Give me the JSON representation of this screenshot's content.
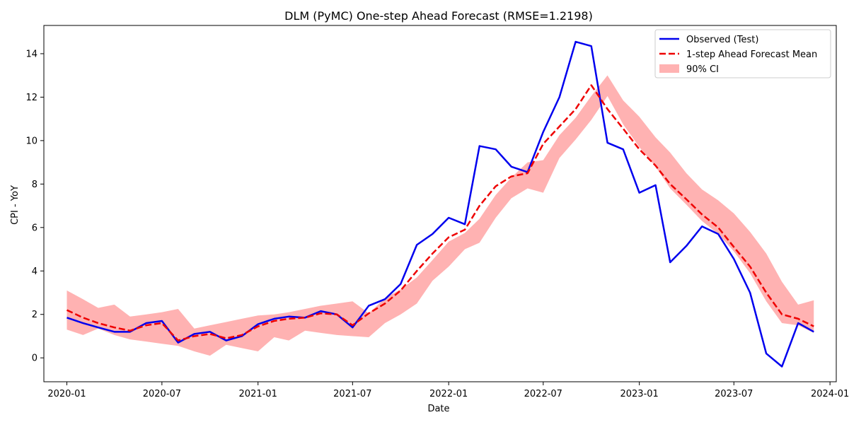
{
  "chart_data": {
    "type": "line",
    "title": "DLM (PyMC) One-step Ahead Forecast (RMSE=1.2198)",
    "xlabel": "Date",
    "ylabel": "CPI - YoY",
    "xlim": [
      "2019-11-18",
      "2024-01-13"
    ],
    "ylim": [
      -1.1,
      15.3
    ],
    "y_ticks": [
      0,
      2,
      4,
      6,
      8,
      10,
      12,
      14
    ],
    "x_ticks": [
      "2020-01",
      "2020-07",
      "2021-01",
      "2021-07",
      "2022-01",
      "2022-07",
      "2023-01",
      "2023-07",
      "2024-01"
    ],
    "grid": false,
    "legend_position": "upper right",
    "x": [
      "2020-01-01",
      "2020-02-01",
      "2020-03-01",
      "2020-04-01",
      "2020-05-01",
      "2020-06-01",
      "2020-07-01",
      "2020-08-01",
      "2020-09-01",
      "2020-10-01",
      "2020-11-01",
      "2020-12-01",
      "2021-01-01",
      "2021-02-01",
      "2021-03-01",
      "2021-04-01",
      "2021-05-01",
      "2021-06-01",
      "2021-07-01",
      "2021-08-01",
      "2021-09-01",
      "2021-10-01",
      "2021-11-01",
      "2021-12-01",
      "2022-01-01",
      "2022-02-01",
      "2022-03-01",
      "2022-04-01",
      "2022-05-01",
      "2022-06-01",
      "2022-07-01",
      "2022-08-01",
      "2022-09-01",
      "2022-10-01",
      "2022-11-01",
      "2022-12-01",
      "2023-01-01",
      "2023-02-01",
      "2023-03-01",
      "2023-04-01",
      "2023-05-01",
      "2023-06-01",
      "2023-07-01",
      "2023-08-01",
      "2023-09-01",
      "2023-10-01",
      "2023-11-01",
      "2023-12-01"
    ],
    "series": [
      {
        "name": "Observed (Test)",
        "color": "#0000ee",
        "style": "solid",
        "values": [
          1.85,
          1.6,
          1.4,
          1.2,
          1.2,
          1.6,
          1.7,
          0.7,
          1.1,
          1.2,
          0.8,
          1.0,
          1.55,
          1.8,
          1.9,
          1.85,
          2.15,
          2.0,
          1.4,
          2.4,
          2.7,
          3.4,
          5.2,
          5.7,
          6.45,
          6.15,
          9.75,
          9.6,
          8.8,
          8.55,
          10.4,
          12.0,
          14.55,
          14.35,
          9.9,
          9.6,
          7.6,
          7.95,
          4.4,
          5.15,
          6.05,
          5.7,
          4.55,
          3.0,
          0.2,
          -0.4,
          1.6,
          1.2
        ]
      },
      {
        "name": "1-step Ahead Forecast Mean",
        "color": "#ee0000",
        "style": "dashed",
        "values": [
          2.2,
          1.85,
          1.6,
          1.4,
          1.25,
          1.5,
          1.6,
          0.8,
          1.0,
          1.1,
          0.9,
          1.05,
          1.45,
          1.7,
          1.8,
          1.85,
          2.05,
          2.0,
          1.5,
          2.05,
          2.5,
          3.1,
          4.0,
          4.8,
          5.55,
          5.9,
          7.0,
          7.9,
          8.35,
          8.5,
          9.85,
          10.65,
          11.45,
          12.55,
          11.45,
          10.55,
          9.6,
          8.85,
          8.0,
          7.3,
          6.6,
          6.0,
          5.1,
          4.2,
          3.0,
          2.0,
          1.8,
          1.45
        ]
      }
    ],
    "band": {
      "name": "90% CI",
      "color": "#ff6666",
      "lower": [
        1.3,
        1.05,
        1.35,
        1.05,
        0.85,
        0.75,
        0.65,
        0.55,
        0.3,
        0.1,
        0.6,
        0.45,
        0.3,
        0.95,
        0.8,
        1.25,
        1.15,
        1.05,
        1.0,
        0.95,
        1.6,
        2.0,
        2.5,
        3.55,
        4.2,
        5.0,
        5.3,
        6.45,
        7.35,
        7.8,
        7.6,
        9.2,
        10.05,
        10.95,
        12.05,
        10.75,
        9.7,
        8.8,
        7.8,
        7.05,
        6.3,
        5.7,
        4.9,
        3.9,
        2.6,
        1.6,
        1.5,
        1.15
      ],
      "upper": [
        3.1,
        2.7,
        2.3,
        2.45,
        1.9,
        2.0,
        2.1,
        2.25,
        1.35,
        1.5,
        1.65,
        1.8,
        1.95,
        2.0,
        2.1,
        2.25,
        2.4,
        2.5,
        2.6,
        2.05,
        2.75,
        3.15,
        3.7,
        4.5,
        5.35,
        5.75,
        6.4,
        7.5,
        8.3,
        9.0,
        9.1,
        10.25,
        11.05,
        12.05,
        13.0,
        11.85,
        11.1,
        10.15,
        9.45,
        8.5,
        7.75,
        7.25,
        6.65,
        5.8,
        4.8,
        3.5,
        2.45,
        2.65
      ]
    }
  }
}
